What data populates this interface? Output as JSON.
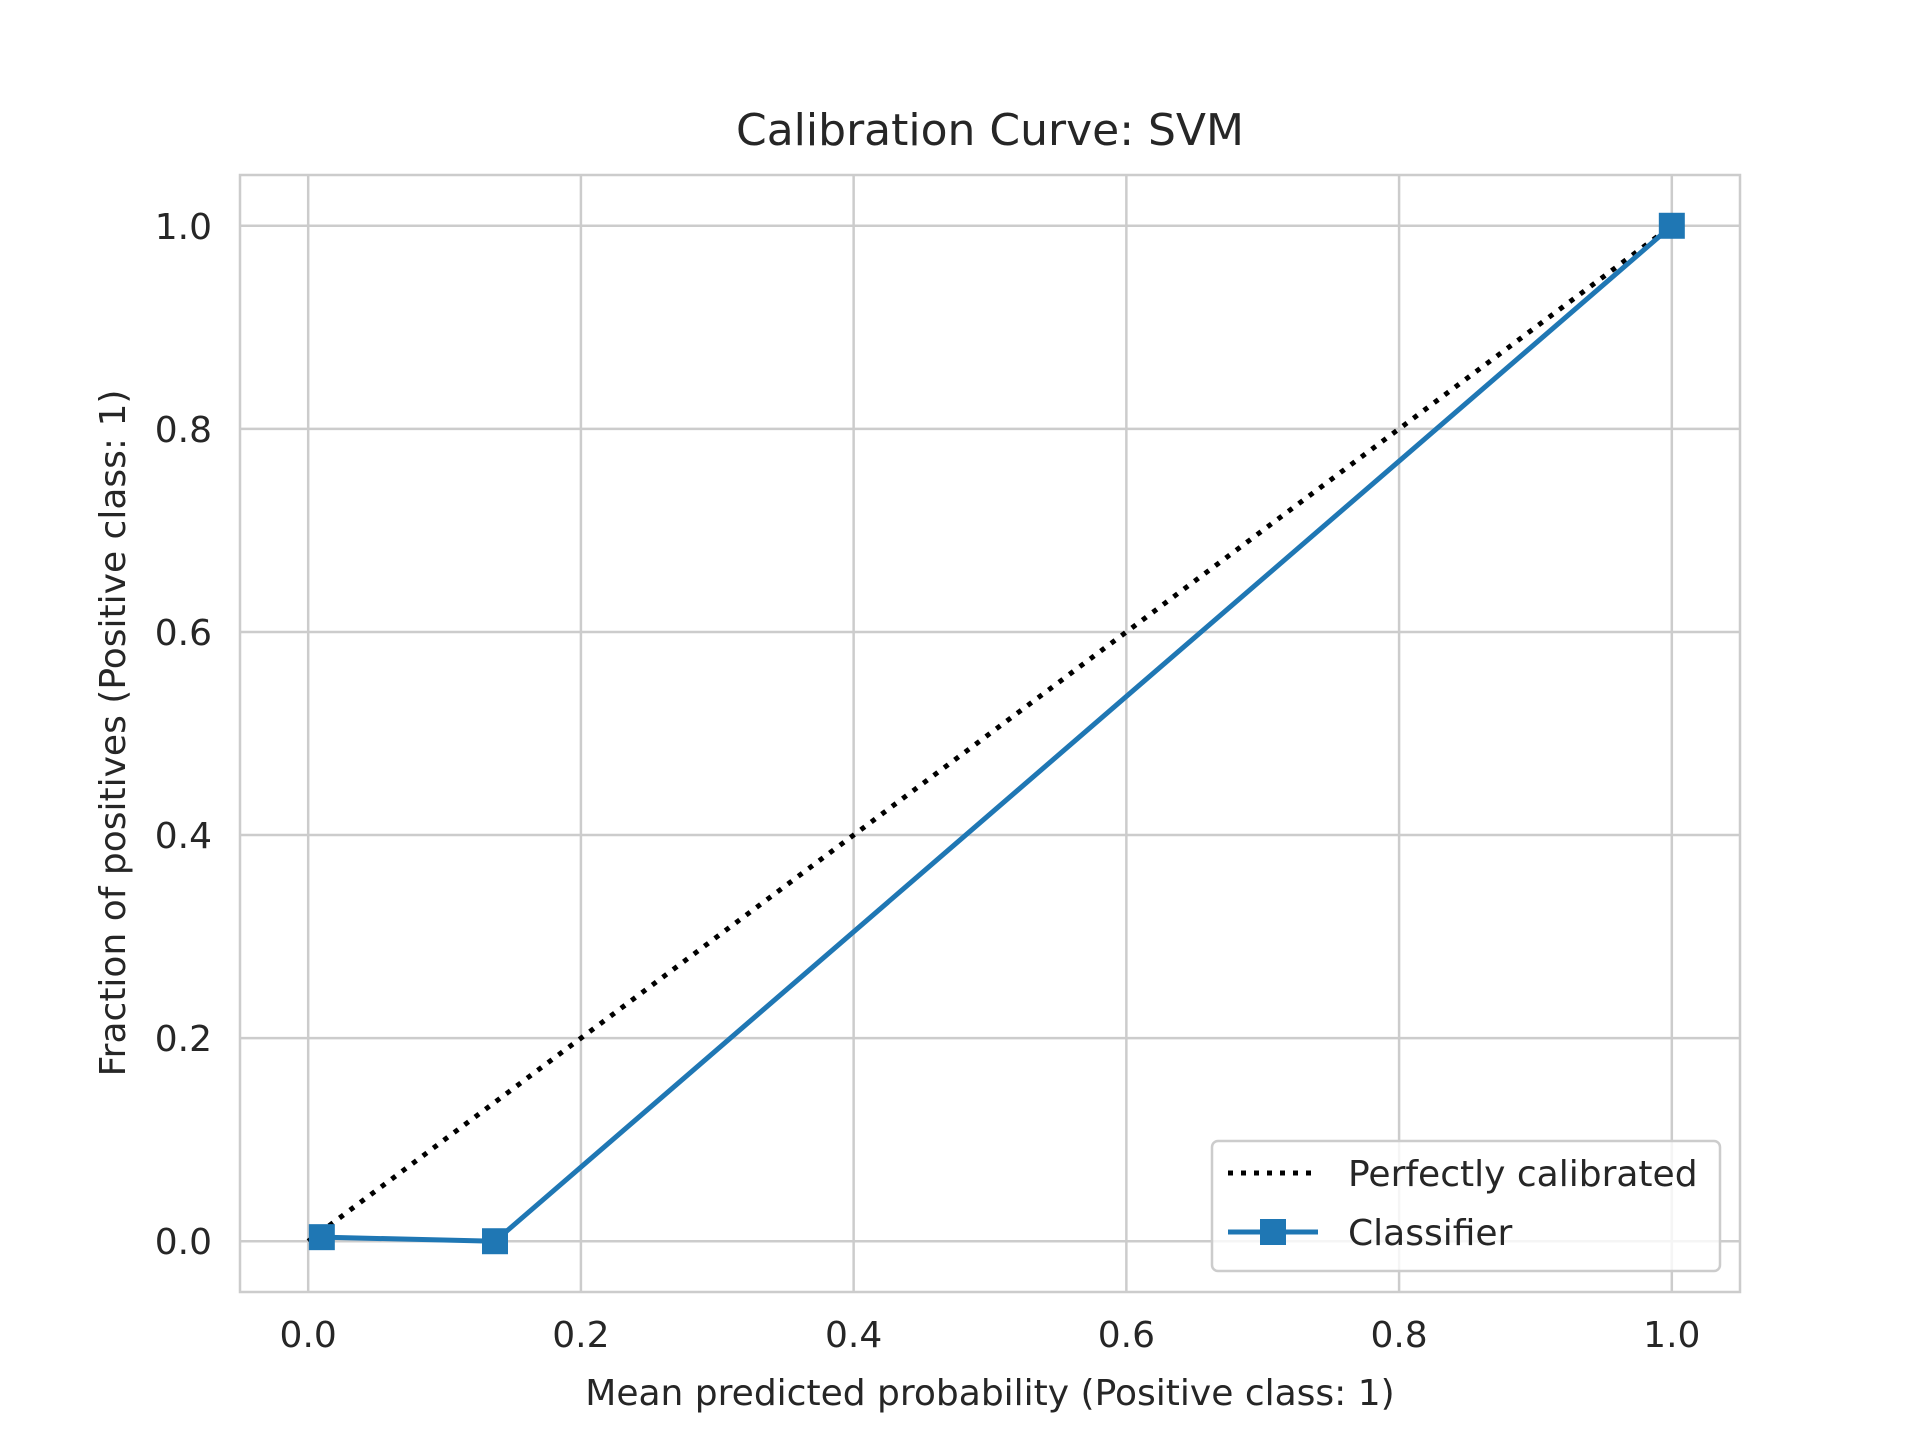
{
  "chart_data": {
    "type": "line",
    "title": "Calibration Curve: SVM",
    "xlabel": "Mean predicted probability (Positive class: 1)",
    "ylabel": "Fraction of positives (Positive class: 1)",
    "xlim": [
      -0.05,
      1.05
    ],
    "ylim": [
      -0.05,
      1.05
    ],
    "xticks": [
      0.0,
      0.2,
      0.4,
      0.6,
      0.8,
      1.0
    ],
    "yticks": [
      0.0,
      0.2,
      0.4,
      0.6,
      0.8,
      1.0
    ],
    "xtick_labels": [
      "0.0",
      "0.2",
      "0.4",
      "0.6",
      "0.8",
      "1.0"
    ],
    "ytick_labels": [
      "0.0",
      "0.2",
      "0.4",
      "0.6",
      "0.8",
      "1.0"
    ],
    "grid": true,
    "legend_position": "lower-right",
    "series": [
      {
        "name": "Perfectly calibrated",
        "style": "dotted",
        "color": "#000000",
        "marker": "none",
        "x": [
          0.0,
          1.0
        ],
        "y": [
          0.0,
          1.0
        ]
      },
      {
        "name": "Classifier",
        "style": "solid",
        "color": "#1f77b4",
        "marker": "square",
        "x": [
          0.01,
          0.137,
          1.0
        ],
        "y": [
          0.004,
          0.0,
          1.0
        ]
      }
    ]
  },
  "colors": {
    "grid": "#cccccc",
    "axes_frame": "#cccccc",
    "text": "#262626",
    "legend_border": "#cccccc"
  }
}
